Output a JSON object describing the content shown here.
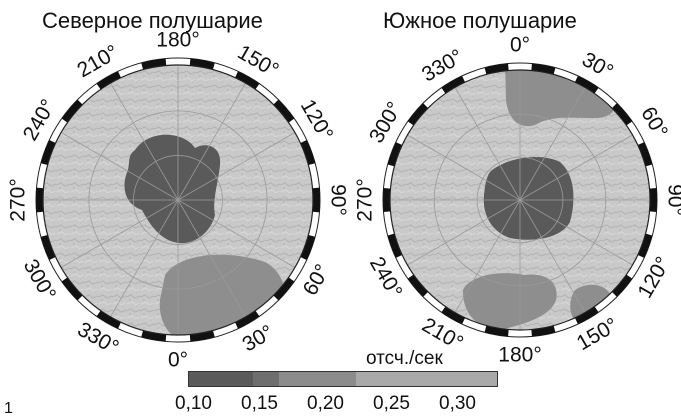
{
  "north": {
    "title": "Северное полушарие",
    "labels": [
      "180°",
      "150°",
      "120°",
      "90°",
      "60°",
      "30°",
      "0°",
      "330°",
      "300°",
      "270°",
      "240°",
      "210°"
    ]
  },
  "south": {
    "title": "Южное полушарие",
    "labels": [
      "0°",
      "30°",
      "60°",
      "90°",
      "120°",
      "150°",
      "180°",
      "210°",
      "240°",
      "270°",
      "300°",
      "330°"
    ]
  },
  "legend": {
    "title": "отсч./сек",
    "ticks": [
      "0,10",
      "0,15",
      "0,20",
      "0,25",
      "0,30"
    ],
    "bins": [
      {
        "from": 0.1,
        "to": 0.15,
        "color": "#5a5a5a"
      },
      {
        "from": 0.15,
        "to": 0.17,
        "color": "#6e6e6e"
      },
      {
        "from": 0.17,
        "to": 0.23,
        "color": "#8c8c8c"
      },
      {
        "from": 0.23,
        "to": 0.34,
        "color": "#a9a9a9"
      }
    ]
  },
  "corner": "1",
  "colors": {
    "terrain": "#c9c9c9",
    "low_dark": "#5a5a5a",
    "mid_gray": "#8e8e8e",
    "ring_black": "#111111",
    "ring_white": "#ffffff"
  }
}
